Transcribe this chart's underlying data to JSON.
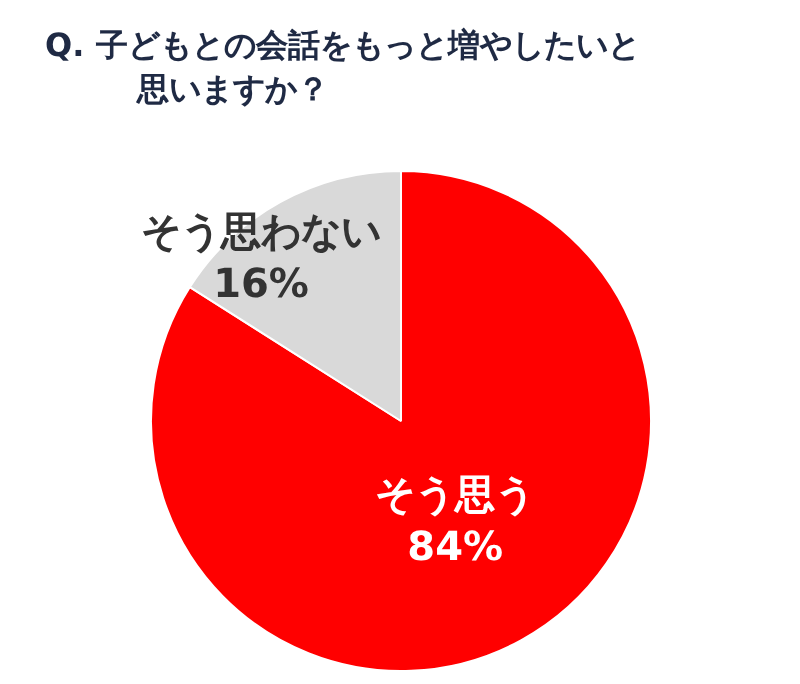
{
  "chart_data": {
    "type": "pie",
    "title": "Q. 子どもとの会話をもっと増やしたいと思いますか？",
    "categories": [
      "そう思う",
      "そう思わない"
    ],
    "values": [
      84,
      16
    ],
    "colors": [
      "#ff0000",
      "#d9d9d9"
    ],
    "value_labels": [
      "84%",
      "16%"
    ]
  }
}
